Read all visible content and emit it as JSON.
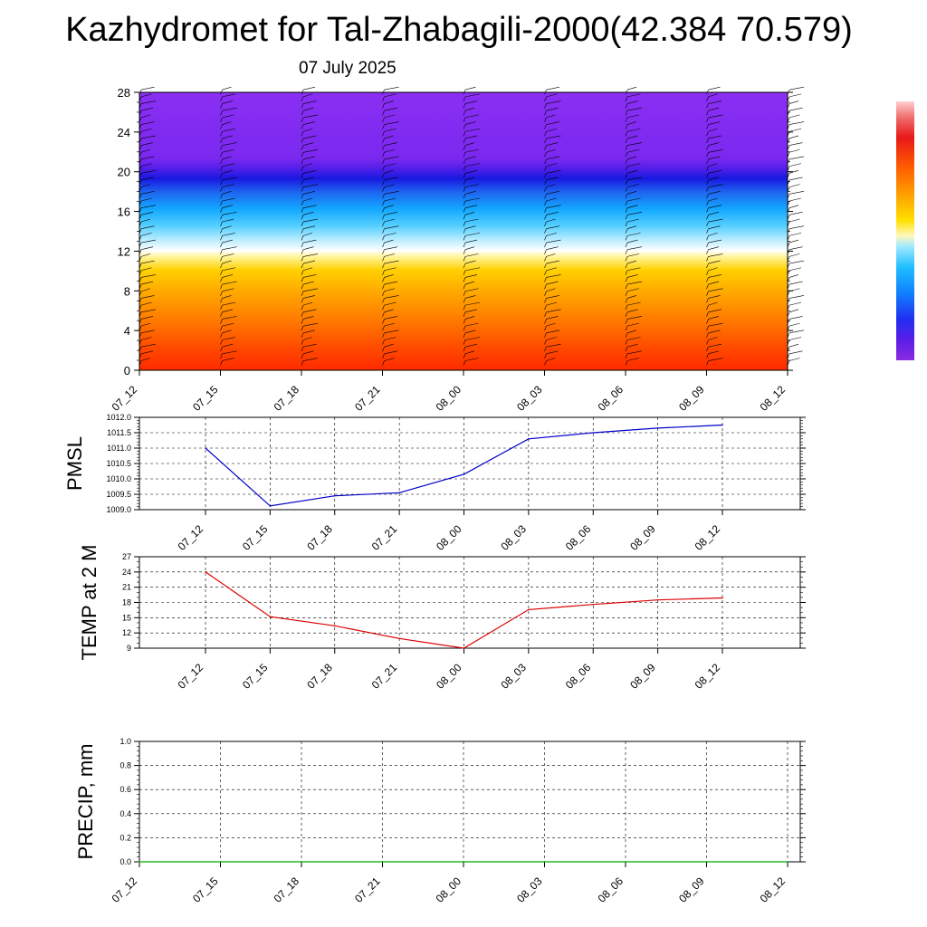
{
  "header": {
    "title": "Kazhydromet for Tal-Zhabagili-2000(42.384 70.579)",
    "date": "07 July 2025"
  },
  "chart_data": [
    {
      "type": "heatmap",
      "title": "",
      "xlabel": "",
      "ylabel": "",
      "x_tick_labels": [
        "07_12",
        "07_15",
        "07_18",
        "07_21",
        "08_00",
        "08_03",
        "08_06",
        "08_09",
        "08_12"
      ],
      "y_tick_labels": [
        "0",
        "4",
        "8",
        "12",
        "16",
        "20",
        "24",
        "28"
      ],
      "ylim": [
        0,
        28
      ],
      "colorbar_colors": [
        "#8b2be0",
        "#6a1ee6",
        "#2020f0",
        "#1070ff",
        "#10b8ff",
        "#40e0ff",
        "#b0f0ff",
        "#fffacd",
        "#ffe400",
        "#ffb000",
        "#ff7800",
        "#ff3000",
        "#e81010",
        "#ffb0b0"
      ],
      "wind_barbs": true
    },
    {
      "type": "line",
      "ylabel": "PMSL",
      "x": [
        "07_12",
        "07_15",
        "07_18",
        "07_21",
        "08_00",
        "08_03",
        "08_06",
        "08_09",
        "08_12"
      ],
      "y_tick_labels": [
        "1009.0",
        "1009.5",
        "1010.0",
        "1010.5",
        "1011.0",
        "1011.5",
        "1012.0"
      ],
      "ylim": [
        1009.0,
        1012.0
      ],
      "series": [
        {
          "color": "#0000cc",
          "values": [
            1011.0,
            1009.12,
            1009.45,
            1009.55,
            1010.15,
            1011.3,
            1011.5,
            1011.65,
            1011.75
          ]
        }
      ],
      "grid": true
    },
    {
      "type": "line",
      "ylabel": "TEMP at 2 M",
      "x": [
        "07_12",
        "07_15",
        "07_18",
        "07_21",
        "08_00",
        "08_03",
        "08_06",
        "08_09",
        "08_12"
      ],
      "y_tick_labels": [
        "9",
        "12",
        "15",
        "18",
        "21",
        "24",
        "27"
      ],
      "ylim": [
        9,
        27
      ],
      "series": [
        {
          "color": "#dd0000",
          "values": [
            24.0,
            15.2,
            13.4,
            10.9,
            9.0,
            16.6,
            17.6,
            18.5,
            18.9
          ]
        }
      ],
      "grid": true
    },
    {
      "type": "line",
      "ylabel": "PRECIP, mm",
      "x": [
        "07_12",
        "07_15",
        "07_18",
        "07_21",
        "08_00",
        "08_03",
        "08_06",
        "08_09",
        "08_12"
      ],
      "y_tick_labels": [
        "0.0",
        "0.2",
        "0.4",
        "0.6",
        "0.8",
        "1.0"
      ],
      "ylim": [
        0.0,
        1.0
      ],
      "series": [
        {
          "color": "#00aa00",
          "values": [
            0,
            0,
            0,
            0,
            0,
            0,
            0,
            0,
            0
          ]
        }
      ],
      "grid": true
    }
  ]
}
